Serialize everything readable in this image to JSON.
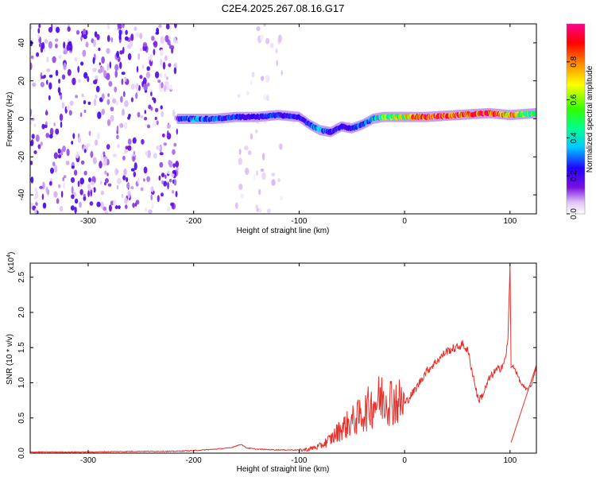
{
  "title": "C2E4.2025.267.08.16.G17",
  "colors": {
    "snr_line": "#e8302a",
    "background": "#ffffff",
    "axis": "#000000"
  },
  "colorbar": {
    "label": "Normalized spectral amplitude",
    "ticks": [
      "0.0",
      "0.2",
      "0.4",
      "0.6",
      "0.8"
    ],
    "tick_values": [
      0.0,
      0.2,
      0.4,
      0.6,
      0.8
    ],
    "range": [
      0.0,
      1.0
    ],
    "colormap": [
      "#ffffff",
      "#d9b8f5",
      "#6a0bd8",
      "#2200ff",
      "#00e5ff",
      "#00ff40",
      "#ffff00",
      "#ff8000",
      "#ff0000",
      "#ff0090"
    ]
  },
  "chart_data": [
    {
      "type": "heatmap",
      "title": "C2E4.2025.267.08.16.G17",
      "xlabel": "Height of straight line (km)",
      "ylabel": "Frequency (Hz)",
      "xlim": [
        -355,
        125
      ],
      "ylim": [
        -50,
        50
      ],
      "x_ticks": [
        -300,
        -200,
        -100,
        0,
        100
      ],
      "x_tick_labels": [
        "-300",
        "-200",
        "-100",
        "0",
        "100"
      ],
      "y_ticks": [
        -40,
        -20,
        0,
        20,
        40
      ],
      "y_tick_labels": [
        "-40",
        "-20",
        "0",
        "20",
        "40"
      ],
      "trace": {
        "description": "main spectral trace frequency vs height",
        "x": [
          -215,
          -200,
          -180,
          -160,
          -140,
          -120,
          -100,
          -90,
          -80,
          -70,
          -60,
          -50,
          -45,
          -40,
          -30,
          -20,
          0,
          20,
          50,
          80,
          100,
          125
        ],
        "y": [
          0,
          0,
          0,
          1,
          1,
          2,
          1,
          -3,
          -6,
          -7,
          -4,
          -5,
          -4,
          -3,
          0,
          1,
          1,
          1,
          2,
          3,
          2,
          3
        ],
        "amplitude": [
          0.35,
          0.4,
          0.35,
          0.35,
          0.3,
          0.35,
          0.3,
          0.35,
          0.4,
          0.35,
          0.3,
          0.3,
          0.35,
          0.35,
          0.45,
          0.55,
          0.65,
          0.9,
          0.85,
          0.9,
          0.75,
          0.5
        ]
      },
      "noise_regions": [
        {
          "x_range": [
            -355,
            -215
          ],
          "amplitude": 0.2
        },
        {
          "x_range": [
            -160,
            -115
          ],
          "amplitude": 0.08
        }
      ]
    },
    {
      "type": "line",
      "xlabel": "Height of straight line (km)",
      "ylabel": "SNR (10 * v/v)",
      "y_scale_label": "(x10^4)",
      "xlim": [
        -355,
        125
      ],
      "ylim": [
        0,
        2.7
      ],
      "x_ticks": [
        -300,
        -200,
        -100,
        0,
        100
      ],
      "x_tick_labels": [
        "-300",
        "-200",
        "-100",
        "0",
        "100"
      ],
      "y_ticks": [
        0.0,
        0.5,
        1.0,
        1.5,
        2.0,
        2.5
      ],
      "y_tick_labels": [
        "0.0",
        "0.5",
        "1.0",
        "1.5",
        "2.0",
        "2.5"
      ],
      "series": [
        {
          "name": "SNR",
          "x": [
            -355,
            -300,
            -250,
            -220,
            -200,
            -180,
            -165,
            -155,
            -150,
            -140,
            -120,
            -100,
            -90,
            -80,
            -70,
            -60,
            -50,
            -40,
            -30,
            -20,
            -10,
            0,
            10,
            20,
            30,
            40,
            50,
            55,
            60,
            65,
            70,
            75,
            80,
            85,
            90,
            95,
            98,
            100,
            101,
            103,
            106,
            110,
            115,
            120,
            125
          ],
          "y": [
            0.01,
            0.01,
            0.02,
            0.02,
            0.03,
            0.05,
            0.07,
            0.12,
            0.07,
            0.05,
            0.04,
            0.04,
            0.06,
            0.1,
            0.2,
            0.35,
            0.45,
            0.55,
            0.7,
            0.8,
            0.75,
            0.7,
            0.9,
            1.15,
            1.3,
            1.45,
            1.5,
            1.55,
            1.45,
            1.1,
            0.75,
            0.85,
            1.05,
            1.15,
            1.2,
            1.3,
            1.6,
            2.7,
            1.2,
            1.25,
            1.15,
            1.0,
            0.9,
            0.95,
            1.25
          ]
        }
      ]
    }
  ]
}
